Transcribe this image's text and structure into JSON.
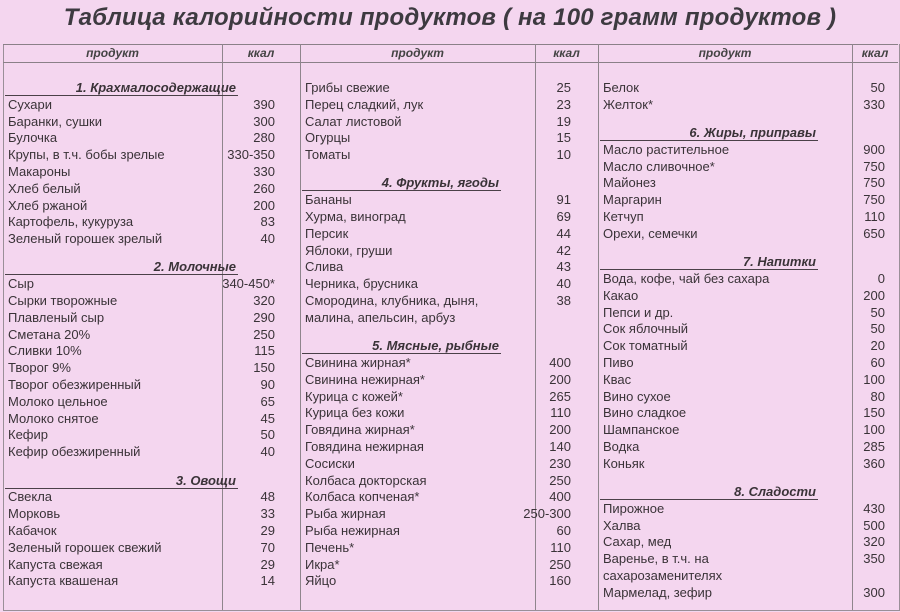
{
  "title": "Таблица калорийности продуктов ( на 100 грамм продуктов )",
  "header": {
    "product": "продукт",
    "kcal": "ккал"
  },
  "background_color": "#f4d6ef",
  "columns": [
    {
      "rows": [
        {
          "type": "section",
          "name": "1. Крахмалосодержащие"
        },
        {
          "name": "Сухари",
          "kcal": "390"
        },
        {
          "name": "Баранки, сушки",
          "kcal": "300"
        },
        {
          "name": "Булочка",
          "kcal": "280"
        },
        {
          "name": "Крупы, в т.ч. бобы зрелые",
          "kcal": "330-350"
        },
        {
          "name": "Макароны",
          "kcal": "330"
        },
        {
          "name": "Хлеб белый",
          "kcal": "260"
        },
        {
          "name": "Хлеб ржаной",
          "kcal": "200"
        },
        {
          "name": "Картофель, кукуруза",
          "kcal": "83"
        },
        {
          "name": "Зеленый горошек зрелый",
          "kcal": "40"
        },
        {
          "type": "section",
          "name": "2. Молочные"
        },
        {
          "name": "Сыр",
          "kcal": "340-450*"
        },
        {
          "name": "Сырки творожные",
          "kcal": "320"
        },
        {
          "name": "Плавленый сыр",
          "kcal": "290"
        },
        {
          "name": "Сметана 20%",
          "kcal": "250"
        },
        {
          "name": "Сливки 10%",
          "kcal": "115"
        },
        {
          "name": "Творог 9%",
          "kcal": "150"
        },
        {
          "name": "Творог обезжиренный",
          "kcal": "90"
        },
        {
          "name": "Молоко цельное",
          "kcal": "65"
        },
        {
          "name": "Молоко снятое",
          "kcal": "45"
        },
        {
          "name": "Кефир",
          "kcal": "50"
        },
        {
          "name": "Кефир обезжиренный",
          "kcal": "40"
        },
        {
          "type": "section",
          "name": "3. Овощи"
        },
        {
          "name": "Свекла",
          "kcal": "48"
        },
        {
          "name": "Морковь",
          "kcal": "33"
        },
        {
          "name": "Кабачок",
          "kcal": "29"
        },
        {
          "name": "Зеленый горошек свежий",
          "kcal": "70"
        },
        {
          "name": "Капуста свежая",
          "kcal": "29"
        },
        {
          "name": "Капуста квашеная",
          "kcal": "14"
        }
      ]
    },
    {
      "rows": [
        {
          "name": "Грибы свежие",
          "kcal": "25"
        },
        {
          "name": "Перец сладкий, лук",
          "kcal": "23"
        },
        {
          "name": "Салат листовой",
          "kcal": "19"
        },
        {
          "name": "Огурцы",
          "kcal": "15"
        },
        {
          "name": "Томаты",
          "kcal": "10"
        },
        {
          "type": "section",
          "name": "4. Фрукты, ягоды"
        },
        {
          "name": "Бананы",
          "kcal": "91"
        },
        {
          "name": "Хурма, виноград",
          "kcal": "69"
        },
        {
          "name": "Персик",
          "kcal": "44"
        },
        {
          "name": "Яблоки, груши",
          "kcal": "42"
        },
        {
          "name": "Слива",
          "kcal": "43"
        },
        {
          "name": "Черника, брусника",
          "kcal": "40"
        },
        {
          "name": "Смородина, клубника, дыня,",
          "kcal": "38"
        },
        {
          "name": "малина, апельсин, арбуз",
          "kcal": ""
        },
        {
          "type": "section",
          "name": "5. Мясные, рыбные"
        },
        {
          "name": "Свинина жирная*",
          "kcal": "400"
        },
        {
          "name": "Свинина нежирная*",
          "kcal": "200"
        },
        {
          "name": "Курица с кожей*",
          "kcal": "265"
        },
        {
          "name": "Курица без кожи",
          "kcal": "110"
        },
        {
          "name": "Говядина жирная*",
          "kcal": "200"
        },
        {
          "name": "Говядина нежирная",
          "kcal": "140"
        },
        {
          "name": "Сосиски",
          "kcal": "230"
        },
        {
          "name": "Колбаса докторская",
          "kcal": "250"
        },
        {
          "name": "Колбаса копченая*",
          "kcal": "400"
        },
        {
          "name": "Рыба жирная",
          "kcal": "250-300"
        },
        {
          "name": "Рыба нежирная",
          "kcal": "60"
        },
        {
          "name": "Печень*",
          "kcal": "110"
        },
        {
          "name": "Икра*",
          "kcal": "250"
        },
        {
          "name": "Яйцо",
          "kcal": "160"
        }
      ]
    },
    {
      "rows": [
        {
          "name": "Белок",
          "kcal": "50"
        },
        {
          "name": "Желток*",
          "kcal": "330"
        },
        {
          "type": "section",
          "name": "6. Жиры, приправы"
        },
        {
          "name": "Масло растительное",
          "kcal": "900"
        },
        {
          "name": "Масло сливочное*",
          "kcal": "750"
        },
        {
          "name": "Майонез",
          "kcal": "750"
        },
        {
          "name": "Маргарин",
          "kcal": "750"
        },
        {
          "name": "Кетчуп",
          "kcal": "110"
        },
        {
          "name": "Орехи, семечки",
          "kcal": "650"
        },
        {
          "type": "section",
          "name": "7. Напитки"
        },
        {
          "name": "Вода, кофе, чай без сахара",
          "kcal": "0"
        },
        {
          "name": "Какао",
          "kcal": "200"
        },
        {
          "name": "Пепси и др.",
          "kcal": "50"
        },
        {
          "name": "Сок яблочный",
          "kcal": "50"
        },
        {
          "name": "Сок томатный",
          "kcal": "20"
        },
        {
          "name": "Пиво",
          "kcal": "60"
        },
        {
          "name": "Квас",
          "kcal": "100"
        },
        {
          "name": "Вино сухое",
          "kcal": "80"
        },
        {
          "name": "Вино сладкое",
          "kcal": "150"
        },
        {
          "name": "Шампанское",
          "kcal": "100"
        },
        {
          "name": "Водка",
          "kcal": "285"
        },
        {
          "name": "Коньяк",
          "kcal": "360"
        },
        {
          "type": "section",
          "name": "8. Сладости"
        },
        {
          "name": "Пирожное",
          "kcal": "430"
        },
        {
          "name": "Халва",
          "kcal": "500"
        },
        {
          "name": "Сахар, мед",
          "kcal": "320"
        },
        {
          "name": "Варенье, в т.ч. на",
          "kcal": "350"
        },
        {
          "name": "сахарозаменителях",
          "kcal": ""
        },
        {
          "name": "Мармелад, зефир",
          "kcal": "300"
        }
      ]
    }
  ]
}
